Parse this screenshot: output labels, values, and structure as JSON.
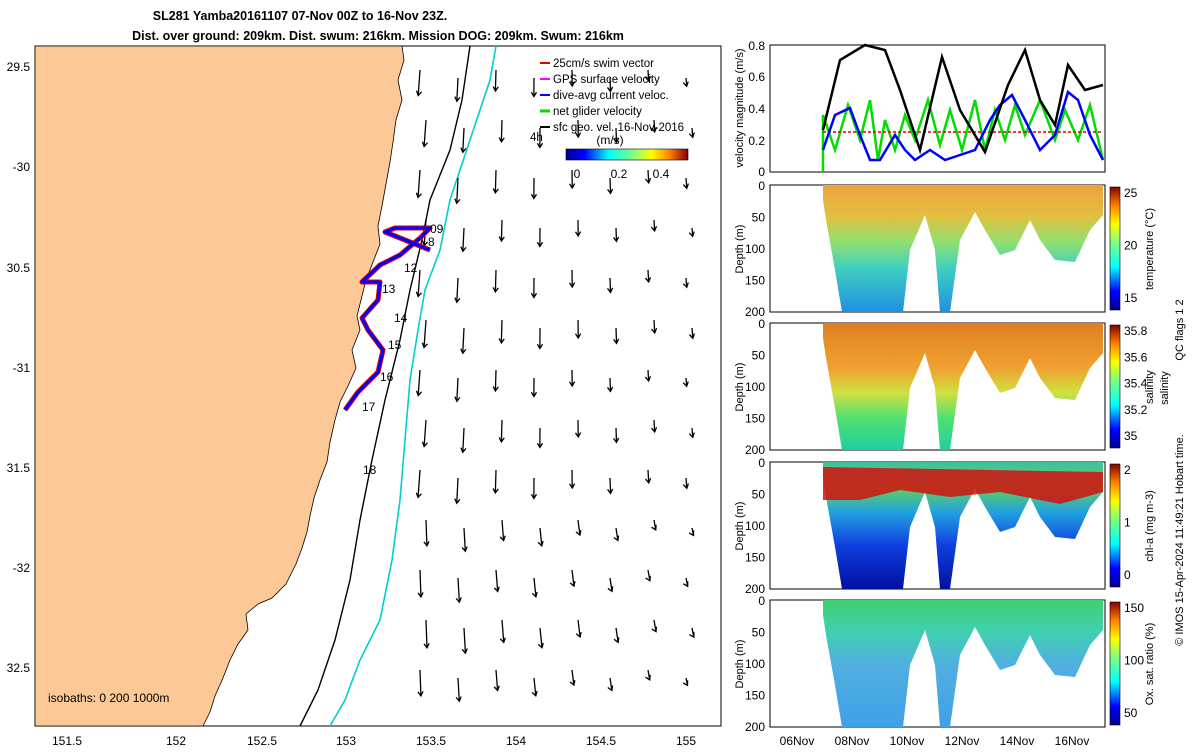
{
  "title": {
    "line1": "SL281 Yamba20161107 07-Nov 00Z to 16-Nov 23Z.",
    "line2": "Dist. over ground: 209km. Dist. swum: 216km. Mission DOG: 209km. Swum: 216km"
  },
  "map": {
    "lon_ticks": [
      "151.5",
      "152",
      "152.5",
      "153",
      "153.5",
      "154",
      "154.5",
      "155"
    ],
    "lat_ticks": [
      "29.5",
      "-30",
      "30.5",
      "-31",
      "31.5",
      "-32",
      "32.5"
    ],
    "legend": [
      {
        "label": "25cm/s swim vector",
        "color": "#e00000"
      },
      {
        "label": "GPS surface velocity",
        "color": "#ff00ff"
      },
      {
        "label": "dive-avg current veloc.",
        "color": "#0000ff"
      },
      {
        "label": "net glider velocity",
        "color": "#00dd00"
      },
      {
        "label": "sfc geo. vel. 16-Nov-2016",
        "color": "#000000"
      }
    ],
    "time_mark": "4h",
    "colorbar_title": "(m/s)",
    "colorbar_ticks": [
      "0",
      "0.2",
      "0.4"
    ],
    "day_labels": [
      "09",
      "8",
      "12",
      "13",
      "14",
      "15",
      "16",
      "17",
      "18"
    ],
    "isobaths_label": "isobaths: 0   200  1000m",
    "land_color": "#fbc896",
    "contour_color": "#00d0d0"
  },
  "panels": [
    {
      "ylabel": "velocity magnitude (m/s)",
      "yticks": [
        "0.8",
        "0.6",
        "0.4",
        "0.2",
        "0"
      ]
    },
    {
      "ylabel": "Depth (m)",
      "yticks": [
        "0",
        "50",
        "100",
        "150",
        "200"
      ],
      "cb_label": "temperature (°C)",
      "cb_ticks": [
        "25",
        "20",
        "15"
      ]
    },
    {
      "ylabel": "Depth (m)",
      "yticks": [
        "0",
        "50",
        "100",
        "150",
        "200"
      ],
      "cb_label": "salinity",
      "cb_ticks": [
        "35.8",
        "35.6",
        "35.4",
        "35.2",
        "35"
      ]
    },
    {
      "ylabel": "Depth (m)",
      "yticks": [
        "0",
        "50",
        "100",
        "150",
        "200"
      ],
      "cb_label": "chl-a (mg m-3)",
      "cb_ticks": [
        "2",
        "1",
        "0"
      ]
    },
    {
      "ylabel": "Depth (m)",
      "yticks": [
        "0",
        "50",
        "100",
        "150",
        "200"
      ],
      "cb_label": "Ox. sat. ratio (%)",
      "cb_ticks": [
        "150",
        "100",
        "50"
      ]
    }
  ],
  "time_ticks": [
    "06Nov",
    "08Nov",
    "10Nov",
    "12Nov",
    "14Nov",
    "16Nov"
  ],
  "side_label1": "salinity",
  "side_label2": "QC flags 1  2",
  "copyright": "© IMOS 15-Apr-2024 11:49:21 Hobart time."
}
